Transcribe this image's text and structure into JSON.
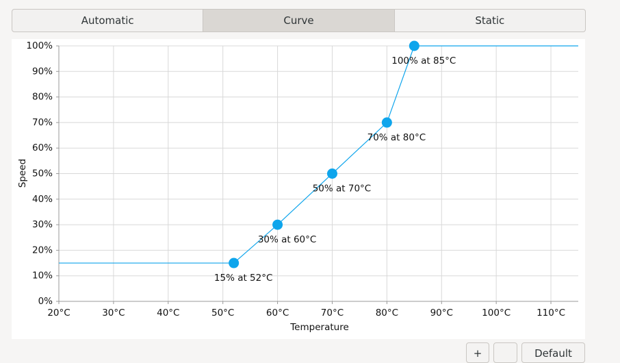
{
  "tabs": [
    "Automatic",
    "Curve",
    "Static"
  ],
  "buttons": [
    "+",
    "Default"
  ],
  "chart_data": {
    "type": "line",
    "x_label": "Temperature",
    "y_label": "Speed",
    "x": [
      52,
      60,
      70,
      80,
      85
    ],
    "values": [
      15,
      30,
      50,
      70,
      100
    ],
    "value_labels": [
      "15% at 52°C",
      "30% at 60°C",
      "50% at 70°C",
      "70% at 80°C",
      "100% at 85°C"
    ],
    "color": "#0ea5ec",
    "xlim": [
      20,
      115
    ],
    "ylim": [
      0,
      100
    ],
    "xticks": [
      {
        "value": 20,
        "label": "20°C"
      },
      {
        "value": 30,
        "label": "30°C"
      },
      {
        "value": 40,
        "label": "40°C"
      },
      {
        "value": 50,
        "label": "50°C"
      },
      {
        "value": 60,
        "label": "60°C"
      },
      {
        "value": 70,
        "label": "70°C"
      },
      {
        "value": 80,
        "label": "80°C"
      },
      {
        "value": 90,
        "label": "90°C"
      },
      {
        "value": 100,
        "label": "100°C"
      },
      {
        "value": 110,
        "label": "110°C"
      }
    ],
    "yticks": [
      {
        "value": 0,
        "label": "0%"
      },
      {
        "value": 10,
        "label": "10%"
      },
      {
        "value": 20,
        "label": "20%"
      },
      {
        "value": 30,
        "label": "30%"
      },
      {
        "value": 40,
        "label": "40%"
      },
      {
        "value": 50,
        "label": "50%"
      },
      {
        "value": 60,
        "label": "60%"
      },
      {
        "value": 70,
        "label": "70%"
      },
      {
        "value": 80,
        "label": "80%"
      },
      {
        "value": 90,
        "label": "90%"
      },
      {
        "value": 100,
        "label": "100%"
      }
    ],
    "grid": true
  }
}
